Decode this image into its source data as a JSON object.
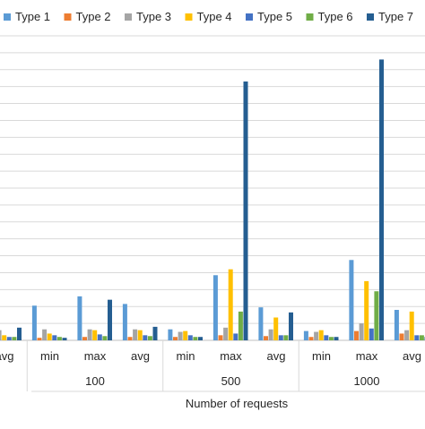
{
  "chart_data": {
    "type": "bar",
    "xlabel": "Number of requests",
    "ylabel": "",
    "title": "",
    "legend_position": "top",
    "grid": true,
    "ylim": [
      0,
      36
    ],
    "yticks_visible": false,
    "categories": [
      {
        "group": "",
        "stat": "avg"
      },
      {
        "group": "100",
        "stat": "min"
      },
      {
        "group": "100",
        "stat": "max"
      },
      {
        "group": "100",
        "stat": "avg"
      },
      {
        "group": "500",
        "stat": "min"
      },
      {
        "group": "500",
        "stat": "max"
      },
      {
        "group": "500",
        "stat": "avg"
      },
      {
        "group": "1000",
        "stat": "min"
      },
      {
        "group": "1000",
        "stat": "max"
      },
      {
        "group": "1000",
        "stat": "avg"
      }
    ],
    "groups": [
      "",
      "100",
      "500",
      "1000"
    ],
    "series": [
      {
        "name": "Type 1",
        "color": "#5b9bd5",
        "values": [
          0.5,
          4.1,
          5.2,
          4.3,
          1.3,
          7.7,
          3.9,
          1.1,
          9.5,
          3.6
        ]
      },
      {
        "name": "Type 2",
        "color": "#ed7d31",
        "values": [
          0.3,
          0.3,
          0.4,
          0.4,
          0.4,
          0.6,
          0.5,
          0.4,
          1.1,
          0.8
        ]
      },
      {
        "name": "Type 3",
        "color": "#a5a5a5",
        "values": [
          1.2,
          1.3,
          1.3,
          1.3,
          1.0,
          1.5,
          1.3,
          1.0,
          2.0,
          1.2
        ]
      },
      {
        "name": "Type 4",
        "color": "#ffc000",
        "values": [
          0.6,
          0.8,
          1.2,
          1.2,
          1.1,
          8.4,
          2.7,
          1.2,
          7.0,
          3.4
        ]
      },
      {
        "name": "Type 5",
        "color": "#4472c4",
        "values": [
          0.4,
          0.6,
          0.7,
          0.6,
          0.6,
          0.8,
          0.6,
          0.6,
          1.4,
          0.6
        ]
      },
      {
        "name": "Type 6",
        "color": "#70ad47",
        "values": [
          0.4,
          0.4,
          0.5,
          0.5,
          0.4,
          3.4,
          0.6,
          0.4,
          5.8,
          0.6
        ]
      },
      {
        "name": "Type 7",
        "color": "#255e91",
        "values": [
          1.5,
          0.3,
          4.8,
          1.6,
          0.4,
          30.6,
          3.3,
          0.4,
          33.2,
          0.4
        ]
      }
    ]
  }
}
